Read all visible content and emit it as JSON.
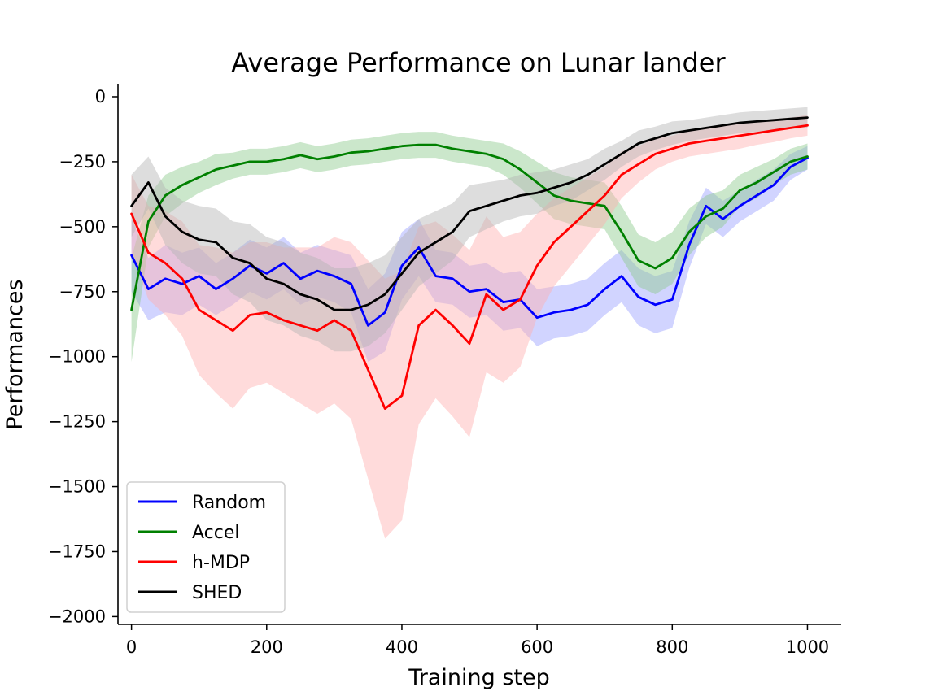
{
  "chart_data": {
    "type": "line",
    "title": "Average Performance on Lunar lander",
    "xlabel": "Training step",
    "ylabel": "Performances",
    "xlim": [
      -20,
      1050
    ],
    "ylim": [
      -2030,
      50
    ],
    "x_ticks": [
      0,
      200,
      400,
      600,
      800,
      1000
    ],
    "x_tick_labels": [
      "0",
      "200",
      "400",
      "600",
      "800",
      "1000"
    ],
    "y_ticks": [
      0,
      -250,
      -500,
      -750,
      -1000,
      -1250,
      -1500,
      -1750,
      -2000
    ],
    "y_tick_labels": [
      "0",
      "−250",
      "−500",
      "−750",
      "−1000",
      "−1250",
      "−1500",
      "−1750",
      "−2000"
    ],
    "grid": false,
    "legend_position": "lower-left",
    "shaded_band": "per-series variability shown as light shaded band",
    "series": [
      {
        "name": "Random",
        "color": "#0000ff",
        "band_color": "#9aa0ff",
        "x": [
          0,
          25,
          50,
          75,
          100,
          125,
          150,
          175,
          200,
          225,
          250,
          275,
          300,
          325,
          350,
          375,
          400,
          425,
          450,
          475,
          500,
          525,
          550,
          575,
          600,
          625,
          650,
          675,
          700,
          725,
          750,
          775,
          800,
          825,
          850,
          875,
          900,
          925,
          950,
          975,
          1000
        ],
        "values": [
          -610,
          -740,
          -700,
          -720,
          -690,
          -740,
          -700,
          -650,
          -680,
          -640,
          -700,
          -670,
          -690,
          -720,
          -880,
          -830,
          -650,
          -580,
          -690,
          -700,
          -750,
          -740,
          -790,
          -780,
          -850,
          -830,
          -820,
          -800,
          -740,
          -690,
          -770,
          -800,
          -780,
          -570,
          -420,
          -470,
          -420,
          -380,
          -340,
          -270,
          -235
        ],
        "band": [
          140,
          120,
          130,
          120,
          110,
          100,
          100,
          100,
          100,
          100,
          100,
          100,
          100,
          110,
          140,
          150,
          130,
          110,
          100,
          100,
          100,
          100,
          110,
          110,
          110,
          100,
          100,
          100,
          100,
          100,
          110,
          110,
          110,
          90,
          70,
          70,
          60,
          60,
          60,
          50,
          45
        ]
      },
      {
        "name": "Accel",
        "color": "#008000",
        "band_color": "#8cc98c",
        "x": [
          0,
          25,
          50,
          75,
          100,
          125,
          150,
          175,
          200,
          225,
          250,
          275,
          300,
          325,
          350,
          375,
          400,
          425,
          450,
          475,
          500,
          525,
          550,
          575,
          600,
          625,
          650,
          675,
          700,
          725,
          750,
          775,
          800,
          825,
          850,
          875,
          900,
          925,
          950,
          975,
          1000
        ],
        "values": [
          -820,
          -480,
          -380,
          -340,
          -310,
          -280,
          -265,
          -250,
          -250,
          -240,
          -225,
          -240,
          -230,
          -215,
          -210,
          -200,
          -190,
          -185,
          -185,
          -200,
          -210,
          -220,
          -240,
          -280,
          -330,
          -380,
          -400,
          -410,
          -420,
          -520,
          -630,
          -660,
          -620,
          -520,
          -460,
          -430,
          -360,
          -330,
          -290,
          -250,
          -230
        ],
        "band": [
          200,
          100,
          80,
          70,
          60,
          60,
          50,
          50,
          50,
          50,
          50,
          50,
          50,
          50,
          50,
          50,
          50,
          50,
          50,
          50,
          50,
          50,
          60,
          70,
          80,
          90,
          90,
          90,
          90,
          100,
          100,
          100,
          100,
          90,
          80,
          70,
          60,
          60,
          50,
          50,
          50
        ]
      },
      {
        "name": "h-MDP",
        "color": "#ff0000",
        "band_color": "#ffb0b0",
        "x": [
          0,
          25,
          50,
          75,
          100,
          125,
          150,
          175,
          200,
          225,
          250,
          275,
          300,
          325,
          350,
          375,
          400,
          425,
          450,
          475,
          500,
          525,
          550,
          575,
          600,
          625,
          650,
          675,
          700,
          725,
          750,
          775,
          800,
          825,
          850,
          875,
          900,
          925,
          950,
          975,
          1000
        ],
        "values": [
          -450,
          -600,
          -640,
          -700,
          -820,
          -860,
          -900,
          -840,
          -830,
          -860,
          -880,
          -900,
          -860,
          -900,
          -1050,
          -1200,
          -1150,
          -880,
          -820,
          -880,
          -950,
          -760,
          -820,
          -780,
          -650,
          -560,
          -500,
          -440,
          -380,
          -300,
          -260,
          -220,
          -200,
          -180,
          -170,
          -160,
          -150,
          -140,
          -130,
          -120,
          -110
        ],
        "band": [
          150,
          180,
          200,
          220,
          250,
          280,
          300,
          280,
          270,
          280,
          300,
          320,
          320,
          340,
          420,
          500,
          480,
          380,
          340,
          350,
          360,
          300,
          280,
          260,
          200,
          170,
          150,
          130,
          110,
          90,
          70,
          60,
          50,
          50,
          50,
          50,
          50,
          45,
          45,
          40,
          40
        ]
      },
      {
        "name": "SHED",
        "color": "#000000",
        "band_color": "#b3b3b3",
        "x": [
          0,
          25,
          50,
          75,
          100,
          125,
          150,
          175,
          200,
          225,
          250,
          275,
          300,
          325,
          350,
          375,
          400,
          425,
          450,
          475,
          500,
          525,
          550,
          575,
          600,
          625,
          650,
          675,
          700,
          725,
          750,
          775,
          800,
          825,
          850,
          875,
          900,
          925,
          950,
          975,
          1000
        ],
        "values": [
          -420,
          -330,
          -460,
          -520,
          -550,
          -560,
          -620,
          -640,
          -700,
          -720,
          -760,
          -780,
          -820,
          -820,
          -800,
          -760,
          -680,
          -600,
          -560,
          -520,
          -440,
          -420,
          -400,
          -380,
          -370,
          -350,
          -330,
          -300,
          -260,
          -220,
          -180,
          -160,
          -140,
          -130,
          -120,
          -110,
          -100,
          -95,
          -90,
          -85,
          -80
        ],
        "band": [
          120,
          100,
          110,
          120,
          130,
          130,
          140,
          150,
          160,
          160,
          160,
          160,
          160,
          160,
          160,
          150,
          140,
          130,
          120,
          110,
          100,
          90,
          80,
          80,
          80,
          70,
          70,
          60,
          60,
          50,
          50,
          45,
          45,
          40,
          40,
          40,
          40,
          40,
          40,
          40,
          40
        ]
      }
    ]
  }
}
